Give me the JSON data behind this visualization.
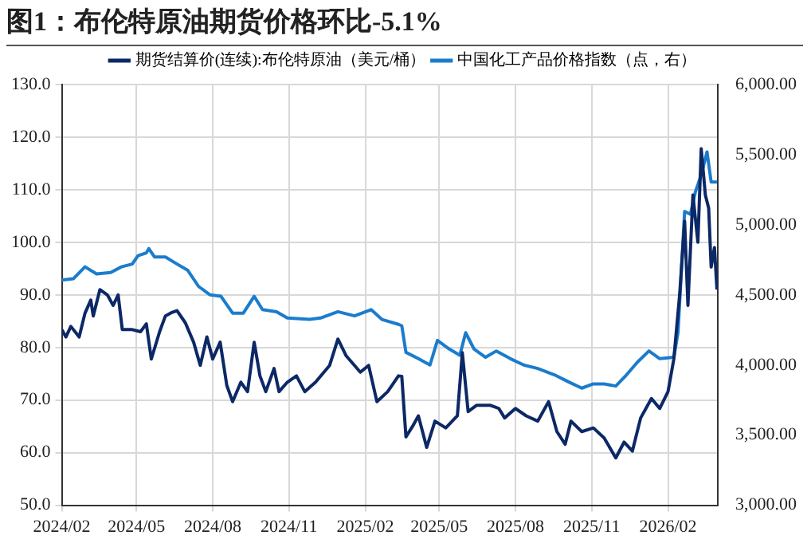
{
  "chart_data": {
    "type": "line",
    "title": "图1：布伦特原油期货价格环比-5.1%",
    "xlim": [
      "2024-02-01",
      "2026-04-02"
    ],
    "xticks": [
      {
        "value": "2024-02-01",
        "label": "2024/02"
      },
      {
        "value": "2024-05-01",
        "label": "2024/05"
      },
      {
        "value": "2024-08-01",
        "label": "2024/08"
      },
      {
        "value": "2024-11-01",
        "label": "2024/11"
      },
      {
        "value": "2025-02-01",
        "label": "2025/02"
      },
      {
        "value": "2025-05-01",
        "label": "2025/05"
      },
      {
        "value": "2025-08-01",
        "label": "2025/08"
      },
      {
        "value": "2025-11-01",
        "label": "2025/11"
      },
      {
        "value": "2026-02-01",
        "label": "2026/02"
      }
    ],
    "ylim": [
      50,
      130
    ],
    "yticks": [
      {
        "value": 50,
        "label": "50.0"
      },
      {
        "value": 60,
        "label": "60.0"
      },
      {
        "value": 70,
        "label": "70.0"
      },
      {
        "value": 80,
        "label": "80.0"
      },
      {
        "value": 90,
        "label": "90.0"
      },
      {
        "value": 100,
        "label": "100.0"
      },
      {
        "value": 110,
        "label": "110.0"
      },
      {
        "value": 120,
        "label": "120.0"
      },
      {
        "value": 130,
        "label": "130.0"
      }
    ],
    "y2lim": [
      3000,
      6000
    ],
    "y2ticks": [
      {
        "value": 3000,
        "label": "3,000.00"
      },
      {
        "value": 3500,
        "label": "3,500.00"
      },
      {
        "value": 4000,
        "label": "4,000.00"
      },
      {
        "value": 4500,
        "label": "4,500.00"
      },
      {
        "value": 5000,
        "label": "5,000.00"
      },
      {
        "value": 5500,
        "label": "5,500.00"
      },
      {
        "value": 6000,
        "label": "6,000.00"
      }
    ],
    "grid": true,
    "legend": "top",
    "marker": "none",
    "line_style": "solid",
    "series": [
      {
        "name": "期货结算价(连续):布伦特原油（美元/桶）",
        "color": "#0c2866",
        "x": [
          "2024-02-01",
          "2024-02-06",
          "2024-02-12",
          "2024-02-22",
          "2024-02-29",
          "2024-03-07",
          "2024-03-10",
          "2024-03-18",
          "2024-03-27",
          "2024-04-03",
          "2024-04-09",
          "2024-04-14",
          "2024-04-26",
          "2024-05-06",
          "2024-05-13",
          "2024-05-19",
          "2024-05-29",
          "2024-06-05",
          "2024-06-12",
          "2024-06-19",
          "2024-06-29",
          "2024-07-09",
          "2024-07-17",
          "2024-07-25",
          "2024-08-01",
          "2024-08-10",
          "2024-08-18",
          "2024-08-25",
          "2024-09-04",
          "2024-09-12",
          "2024-09-20",
          "2024-09-27",
          "2024-10-04",
          "2024-10-14",
          "2024-10-20",
          "2024-10-30",
          "2024-11-10",
          "2024-11-20",
          "2024-12-03",
          "2024-12-20",
          "2024-12-30",
          "2025-01-09",
          "2025-01-26",
          "2025-02-05",
          "2025-02-15",
          "2025-02-28",
          "2025-03-13",
          "2025-03-17",
          "2025-03-22",
          "2025-03-30",
          "2025-04-06",
          "2025-04-16",
          "2025-04-26",
          "2025-05-09",
          "2025-05-23",
          "2025-05-29",
          "2025-06-05",
          "2025-06-15",
          "2025-07-02",
          "2025-07-12",
          "2025-07-19",
          "2025-08-01",
          "2025-08-14",
          "2025-08-28",
          "2025-09-10",
          "2025-09-20",
          "2025-09-30",
          "2025-10-07",
          "2025-10-20",
          "2025-11-03",
          "2025-11-16",
          "2025-11-30",
          "2025-12-10",
          "2025-12-20",
          "2025-12-30",
          "2026-01-12",
          "2026-01-22",
          "2026-02-01",
          "2026-02-08",
          "2026-02-15",
          "2026-02-21",
          "2026-02-25",
          "2026-03-03",
          "2026-03-09",
          "2026-03-13",
          "2026-03-18",
          "2026-03-22",
          "2026-03-25",
          "2026-03-29",
          "2026-04-01"
        ],
        "values": [
          83.4,
          82,
          84,
          82,
          86.5,
          89,
          86,
          91,
          90,
          88,
          90,
          83.4,
          83.4,
          83,
          84.5,
          77.8,
          83,
          86,
          86.6,
          87,
          84.7,
          81,
          76.6,
          82,
          77.8,
          81,
          72.8,
          69.7,
          73.4,
          71.6,
          81,
          74.6,
          71.6,
          76,
          71.6,
          73.4,
          74.6,
          71.6,
          73.4,
          76.6,
          81.6,
          78.4,
          75.3,
          76.6,
          69.7,
          71.6,
          74.6,
          74.5,
          63,
          65,
          67,
          61,
          66,
          64.7,
          67,
          79,
          67.8,
          69,
          69,
          68.4,
          66.6,
          68.4,
          67,
          66,
          69.7,
          64,
          61.6,
          66,
          64,
          64.7,
          62.8,
          59,
          62,
          60.3,
          66.6,
          70.3,
          68.4,
          71.6,
          77.8,
          90,
          104,
          88,
          109,
          100,
          117.8,
          109,
          106.5,
          95.3,
          99,
          91
        ]
      },
      {
        "name": "中国化工产品价格指数（点，右）",
        "color": "#1b7ccc",
        "axis": "y2",
        "x": [
          "2024-02-01",
          "2024-02-15",
          "2024-02-29",
          "2024-03-14",
          "2024-03-31",
          "2024-04-13",
          "2024-04-26",
          "2024-05-03",
          "2024-05-13",
          "2024-05-16",
          "2024-05-23",
          "2024-06-05",
          "2024-06-19",
          "2024-07-02",
          "2024-07-15",
          "2024-07-29",
          "2024-08-11",
          "2024-08-25",
          "2024-09-07",
          "2024-09-20",
          "2024-09-30",
          "2024-10-17",
          "2024-10-30",
          "2024-11-26",
          "2024-12-09",
          "2024-12-30",
          "2025-01-19",
          "2025-02-08",
          "2025-02-21",
          "2025-03-13",
          "2025-03-17",
          "2025-03-22",
          "2025-04-06",
          "2025-04-20",
          "2025-04-29",
          "2025-05-13",
          "2025-05-26",
          "2025-06-02",
          "2025-06-12",
          "2025-06-26",
          "2025-07-09",
          "2025-07-26",
          "2025-08-11",
          "2025-08-28",
          "2025-09-17",
          "2025-10-04",
          "2025-10-20",
          "2025-11-03",
          "2025-11-16",
          "2025-11-30",
          "2025-12-13",
          "2025-12-26",
          "2026-01-09",
          "2026-01-22",
          "2026-02-08",
          "2026-02-13",
          "2026-02-21",
          "2026-02-28",
          "2026-03-06",
          "2026-03-13",
          "2026-03-20",
          "2026-03-25",
          "2026-04-01"
        ],
        "values": [
          4605,
          4615,
          4700,
          4650,
          4660,
          4700,
          4720,
          4780,
          4800,
          4830,
          4770,
          4770,
          4720,
          4675,
          4560,
          4500,
          4490,
          4370,
          4370,
          4490,
          4395,
          4380,
          4335,
          4325,
          4335,
          4380,
          4350,
          4395,
          4325,
          4290,
          4280,
          4090,
          4045,
          4000,
          4175,
          4115,
          4070,
          4230,
          4115,
          4055,
          4100,
          4045,
          4000,
          3975,
          3930,
          3880,
          3835,
          3865,
          3865,
          3850,
          3930,
          4020,
          4100,
          4045,
          4055,
          4230,
          5095,
          5075,
          5235,
          5355,
          5520,
          5305,
          5305
        ]
      }
    ]
  }
}
